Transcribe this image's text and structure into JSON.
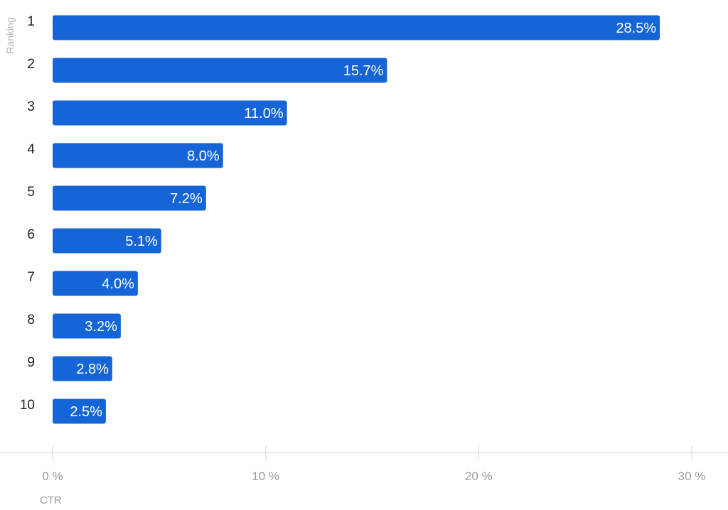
{
  "chart_data": {
    "type": "bar",
    "orientation": "horizontal",
    "categories": [
      "1",
      "2",
      "3",
      "4",
      "5",
      "6",
      "7",
      "8",
      "9",
      "10"
    ],
    "values": [
      28.5,
      15.7,
      11.0,
      8.0,
      7.2,
      5.1,
      4.0,
      3.2,
      2.8,
      2.5
    ],
    "value_labels": [
      "28.5%",
      "15.7%",
      "11.0%",
      "8.0%",
      "7.2%",
      "5.1%",
      "4.0%",
      "3.2%",
      "2.8%",
      "2.5%"
    ],
    "xlabel": "CTR",
    "ylabel": "Ranking",
    "xlim": [
      0,
      30
    ],
    "x_ticks": [
      0,
      10,
      20,
      30
    ],
    "x_tick_labels": [
      "0 %",
      "10 %",
      "20 %",
      "30 %"
    ],
    "grid": false,
    "colors": {
      "bar": "#1565d6",
      "axis": "#e3e3e3",
      "bar_label": "#ffffff"
    }
  }
}
